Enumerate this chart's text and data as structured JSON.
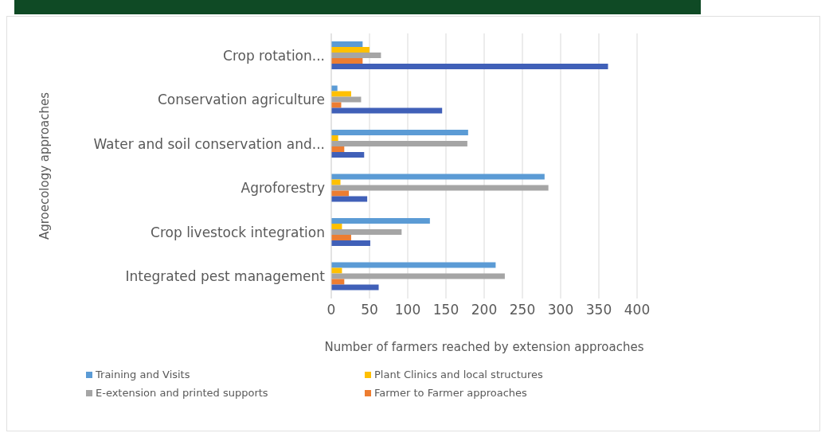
{
  "chart_data": {
    "type": "bar",
    "orientation": "horizontal",
    "xlabel": "Number of farmers reached by extension approaches",
    "ylabel": "Agroecology approaches",
    "categories": [
      "Crop rotation...",
      "Conservation agriculture",
      "Water and soil conservation and...",
      "Agroforestry",
      "Crop livestock integration",
      "Integrated pest management"
    ],
    "series": [
      {
        "name": "Training and Visits",
        "color": "#5b9bd5",
        "values": [
          41,
          8,
          179,
          279,
          129,
          215
        ]
      },
      {
        "name": "Plant Clinics and local structures",
        "color": "#ffc000",
        "values": [
          50,
          26,
          9,
          12,
          14,
          14
        ]
      },
      {
        "name": "E-extension and printed supports",
        "color": "#a5a5a5",
        "values": [
          65,
          39,
          178,
          284,
          92,
          227
        ]
      },
      {
        "name": "Farmer to Farmer approaches",
        "color": "#ed7d31",
        "values": [
          41,
          13,
          17,
          23,
          26,
          17
        ]
      },
      {
        "color": "#4060b8",
        "values": [
          362,
          145,
          43,
          47,
          51,
          62
        ]
      }
    ],
    "xlim": [
      0,
      400
    ],
    "xticks": [
      0,
      50,
      100,
      150,
      200,
      250,
      300,
      350,
      400
    ],
    "grid": "x",
    "legend": "bottom"
  }
}
